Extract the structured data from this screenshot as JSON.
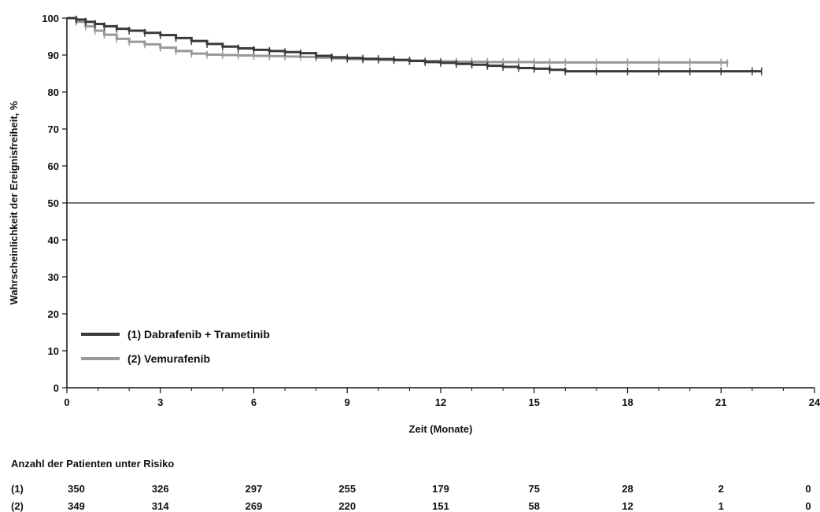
{
  "chart_data": {
    "type": "line",
    "xlabel": "Zeit (Monate)",
    "ylabel": "Wahrscheinlichkeit der Ereignisfreiheit, %",
    "xlim": [
      0,
      24
    ],
    "ylim": [
      0,
      100
    ],
    "x_ticks": [
      "0",
      "3",
      "6",
      "9",
      "12",
      "15",
      "18",
      "21",
      "24"
    ],
    "y_ticks": [
      "0",
      "10",
      "20",
      "30",
      "40",
      "50",
      "60",
      "70",
      "80",
      "90",
      "100"
    ],
    "reference_line_y": 50,
    "legend_position": "bottom-left",
    "series": [
      {
        "name": "(1) Dabrafenib + Trametinib",
        "color": "#3a3a3a",
        "x": [
          0,
          0.3,
          0.6,
          0.9,
          1.2,
          1.6,
          2.0,
          2.5,
          3.0,
          3.5,
          4.0,
          4.5,
          5.0,
          5.5,
          6.0,
          6.5,
          7.0,
          7.5,
          8.0,
          8.5,
          9.0,
          9.5,
          10.0,
          10.5,
          11.0,
          11.5,
          12.0,
          12.5,
          13.0,
          13.5,
          14.0,
          14.5,
          15.0,
          15.5,
          16.0,
          17.0,
          18.0,
          19.0,
          20.0,
          21.0,
          22.0,
          22.3
        ],
        "y": [
          100,
          99.6,
          99.0,
          98.4,
          97.8,
          97.1,
          96.6,
          96.0,
          95.4,
          94.6,
          93.8,
          93.0,
          92.3,
          91.8,
          91.4,
          91.1,
          90.8,
          90.5,
          89.8,
          89.4,
          89.2,
          89.0,
          88.9,
          88.7,
          88.4,
          88.1,
          87.9,
          87.6,
          87.4,
          87.1,
          86.8,
          86.5,
          86.3,
          86.0,
          85.6,
          85.6,
          85.6,
          85.6,
          85.6,
          85.6,
          85.6,
          85.6
        ]
      },
      {
        "name": "(2) Vemurafenib",
        "color": "#999999",
        "x": [
          0,
          0.3,
          0.6,
          0.9,
          1.2,
          1.6,
          2.0,
          2.5,
          3.0,
          3.5,
          4.0,
          4.5,
          5.0,
          5.5,
          6.0,
          6.5,
          7.0,
          7.5,
          8.0,
          8.5,
          9.0,
          9.5,
          10.0,
          10.5,
          11.0,
          11.5,
          12.0,
          12.5,
          13.0,
          13.5,
          14.0,
          14.5,
          15.0,
          15.5,
          16.0,
          17.0,
          18.0,
          19.0,
          20.0,
          21.0,
          21.2
        ],
        "y": [
          100,
          99.0,
          97.8,
          96.6,
          95.5,
          94.4,
          93.6,
          92.9,
          92.0,
          91.1,
          90.4,
          90.1,
          90.0,
          89.9,
          89.8,
          89.7,
          89.6,
          89.5,
          89.3,
          89.1,
          88.9,
          88.8,
          88.7,
          88.6,
          88.5,
          88.4,
          88.3,
          88.2,
          88.2,
          88.1,
          88.1,
          88.1,
          88.0,
          88.0,
          88.0,
          88.0,
          88.0,
          88.0,
          88.0,
          88.0,
          87.8
        ]
      }
    ],
    "risk_table": {
      "title": "Anzahl der Patienten unter Risiko",
      "x": [
        0,
        3,
        6,
        9,
        12,
        15,
        18,
        21,
        24
      ],
      "rows": [
        {
          "label": "(1)",
          "values": [
            "350",
            "326",
            "297",
            "255",
            "179",
            "75",
            "28",
            "2",
            "0"
          ]
        },
        {
          "label": "(2)",
          "values": [
            "349",
            "314",
            "269",
            "220",
            "151",
            "58",
            "12",
            "1",
            "0"
          ]
        }
      ]
    }
  }
}
